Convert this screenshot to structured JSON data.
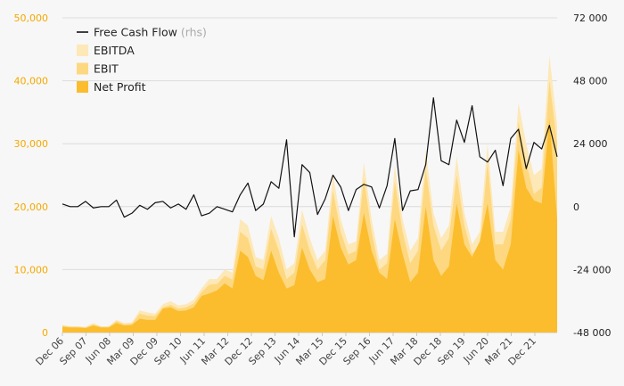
{
  "chart_data": {
    "type": "area",
    "title": "",
    "xlabel": "",
    "ylabel": "",
    "y_left_lim": [
      0,
      50000
    ],
    "y_left_ticks": [
      "0",
      "10,000",
      "20,000",
      "30,000",
      "40,000",
      "50,000"
    ],
    "y_right_lim": [
      -48000,
      72000
    ],
    "y_right_ticks": [
      "-48 000",
      "-24 000",
      "0",
      "24 000",
      "48 000",
      "72 000"
    ],
    "x_labels": [
      "Dec 06",
      "Sep 07",
      "Jun 08",
      "Mar 09",
      "Dec 09",
      "Sep 10",
      "Jun 11",
      "Mar 12",
      "Dec 12",
      "Sep 13",
      "Jun 14",
      "Mar 15",
      "Dec 15",
      "Sep 16",
      "Jun 17",
      "Mar 18",
      "Dec 18",
      "Sep 19",
      "Jun 20",
      "Mar 21",
      "Dec 21"
    ],
    "grid": true,
    "legend_position": "top-left",
    "colors": {
      "ebitda": "#fde8b8",
      "ebit": "#fdd880",
      "net_profit": "#fbbd2e",
      "fcf": "#111111",
      "left_axis": "#f4a900"
    },
    "legend": [
      {
        "key": "fcf",
        "label": "Free Cash Flow",
        "note": "(rhs)"
      },
      {
        "key": "ebitda",
        "label": "EBITDA",
        "note": ""
      },
      {
        "key": "ebit",
        "label": "EBIT",
        "note": ""
      },
      {
        "key": "net_profit",
        "label": "Net Profit",
        "note": ""
      }
    ],
    "series": [
      {
        "key": "ebitda",
        "axis": "left",
        "values": [
          1200,
          1000,
          1000,
          900,
          1500,
          1000,
          1000,
          2000,
          1500,
          1600,
          3500,
          3200,
          3000,
          4500,
          5000,
          4300,
          4500,
          5200,
          7000,
          8500,
          8500,
          10000,
          9500,
          18000,
          17000,
          12000,
          11500,
          18500,
          15000,
          10000,
          11000,
          19500,
          15000,
          11500,
          13000,
          25000,
          18000,
          14000,
          14500,
          27000,
          18000,
          11500,
          12500,
          26500,
          18000,
          13000,
          15000,
          29000,
          19000,
          15000,
          17000,
          28000,
          19000,
          14000,
          16000,
          30000,
          16000,
          16000,
          20000,
          36500,
          30000,
          25000,
          26000,
          44000,
          33000
        ]
      },
      {
        "key": "ebit",
        "axis": "left",
        "values": [
          1100,
          900,
          900,
          800,
          1300,
          900,
          900,
          1800,
          1300,
          1400,
          3000,
          2700,
          2600,
          4000,
          4400,
          3800,
          4000,
          4600,
          6400,
          7600,
          7700,
          9000,
          8400,
          16000,
          15000,
          10500,
          10000,
          16500,
          13000,
          8500,
          9500,
          17200,
          13000,
          10000,
          11500,
          22500,
          16000,
          12400,
          13000,
          24500,
          16000,
          10000,
          11000,
          24000,
          16000,
          11000,
          13000,
          26000,
          17000,
          13000,
          15000,
          25000,
          17000,
          12500,
          14000,
          27000,
          14000,
          14000,
          18000,
          33500,
          27000,
          22000,
          23000,
          40000,
          30000
        ]
      },
      {
        "key": "net_profit",
        "axis": "left",
        "values": [
          900,
          800,
          800,
          700,
          1100,
          800,
          800,
          1500,
          1100,
          1200,
          2200,
          2000,
          2000,
          3800,
          4000,
          3400,
          3500,
          4000,
          5800,
          6200,
          6700,
          7800,
          7000,
          13000,
          12000,
          9000,
          8300,
          13000,
          9500,
          7000,
          7500,
          13500,
          10000,
          8000,
          8500,
          18500,
          13500,
          10800,
          11500,
          19000,
          13000,
          9500,
          8500,
          18000,
          12500,
          8000,
          9500,
          20000,
          11500,
          9000,
          10500,
          20500,
          14000,
          12000,
          14500,
          20500,
          11500,
          10000,
          14000,
          29000,
          23000,
          21000,
          20500,
          34000,
          18000
        ]
      },
      {
        "key": "fcf",
        "axis": "right",
        "values": [
          1000,
          0,
          0,
          2000,
          -500,
          0,
          0,
          2500,
          -4000,
          -2500,
          500,
          -1000,
          1500,
          2000,
          -500,
          1000,
          -1000,
          4500,
          -3500,
          -2500,
          0,
          -1000,
          -2000,
          4500,
          9000,
          -1500,
          1000,
          9500,
          7000,
          25500,
          -11500,
          16000,
          13000,
          -3000,
          3000,
          12000,
          7500,
          -1500,
          6500,
          8500,
          7500,
          -500,
          8000,
          26000,
          -1500,
          6000,
          6500,
          16000,
          41500,
          17500,
          16000,
          33000,
          24500,
          38500,
          19000,
          17000,
          21500,
          8000,
          26000,
          29500,
          14500,
          24500,
          22000,
          31000,
          19000
        ]
      }
    ]
  }
}
